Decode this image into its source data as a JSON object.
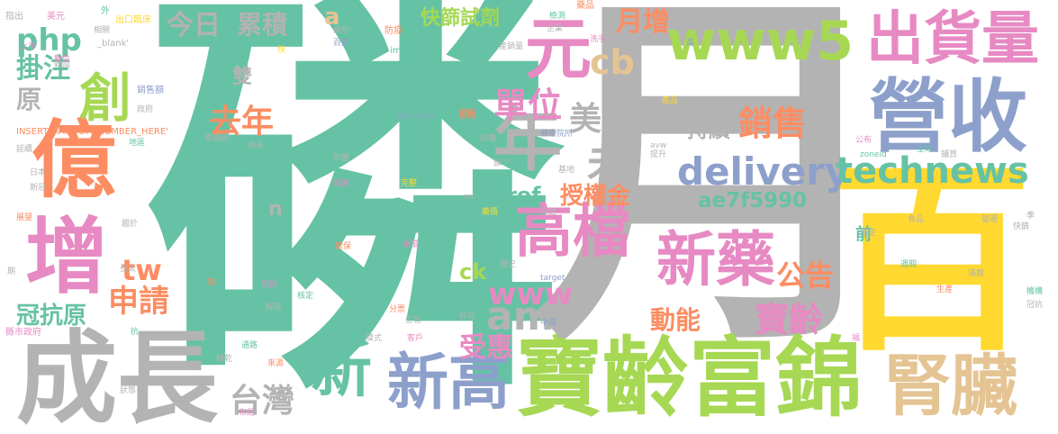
{
  "colors": {
    "teal": "#66c2a5",
    "orange": "#fc8d62",
    "blue": "#8da0cb",
    "pink": "#e78ac3",
    "green": "#a6d854",
    "yellow": "#ffd92f",
    "tan": "#e5c494",
    "gray": "#b3b3b3"
  },
  "words": [
    {
      "key": "lin",
      "text": "磷",
      "color": "teal"
    },
    {
      "key": "yue",
      "text": "月",
      "color": "gray"
    },
    {
      "key": "bai",
      "text": "百",
      "color": "yellow"
    },
    {
      "key": "chengzhang",
      "text": "成長",
      "color": "gray"
    },
    {
      "key": "baolingfujin",
      "text": "寶齡富錦",
      "color": "green"
    },
    {
      "key": "yingshou",
      "text": "營收",
      "color": "blue"
    },
    {
      "key": "chuhuoliang",
      "text": "出貨量",
      "color": "pink"
    },
    {
      "key": "shenzang",
      "text": "腎臟",
      "color": "tan"
    },
    {
      "key": "xinyao",
      "text": "新藥",
      "color": "pink"
    },
    {
      "key": "yi",
      "text": "億",
      "color": "orange"
    },
    {
      "key": "zeng",
      "text": "增",
      "color": "pink"
    },
    {
      "key": "yuan",
      "text": "元",
      "color": "pink"
    },
    {
      "key": "nian",
      "text": "年",
      "color": "gray"
    },
    {
      "key": "www5",
      "text": "www5",
      "color": "green"
    },
    {
      "key": "xingao",
      "text": "新高",
      "color": "blue"
    },
    {
      "key": "gaodang",
      "text": "高檔",
      "color": "pink"
    },
    {
      "key": "xin",
      "text": "新",
      "color": "teal"
    },
    {
      "key": "chuang",
      "text": "創",
      "color": "green"
    },
    {
      "key": "delivery",
      "text": "delivery",
      "color": "blue"
    },
    {
      "key": "technews",
      "text": "technews",
      "color": "teal"
    },
    {
      "key": "ae7f5990",
      "text": "ae7f5990",
      "color": "teal"
    },
    {
      "key": "amp",
      "text": "amp",
      "color": "gray"
    },
    {
      "key": "www",
      "text": "www",
      "color": "pink"
    },
    {
      "key": "qunian",
      "text": "去年",
      "color": "orange"
    },
    {
      "key": "danwei",
      "text": "單位",
      "color": "pink"
    },
    {
      "key": "meiguo",
      "text": "美國",
      "color": "gray"
    },
    {
      "key": "wei",
      "text": "未",
      "color": "gray"
    },
    {
      "key": "php",
      "text": "php",
      "color": "teal"
    },
    {
      "key": "cb",
      "text": "cb",
      "color": "tan"
    },
    {
      "key": "xiaoshou",
      "text": "銷售",
      "color": "orange"
    },
    {
      "key": "baoling",
      "text": "寶齡",
      "color": "pink"
    },
    {
      "key": "taiwan",
      "text": "台灣",
      "color": "gray"
    },
    {
      "key": "kuaishaishiji",
      "text": "快篩試劑",
      "color": "green"
    },
    {
      "key": "yuezeng",
      "text": "月增",
      "color": "orange"
    },
    {
      "key": "shouquanjin",
      "text": "授權金",
      "color": "orange"
    },
    {
      "key": "dongneng",
      "text": "動能",
      "color": "orange"
    },
    {
      "key": "gonggao",
      "text": "公告",
      "color": "orange"
    },
    {
      "key": "tw",
      "text": "tw",
      "color": "orange"
    },
    {
      "key": "shenqing",
      "text": "申請",
      "color": "orange"
    },
    {
      "key": "guankangyuan",
      "text": "冠抗原",
      "color": "teal"
    },
    {
      "key": "jinri",
      "text": "今日",
      "color": "gray"
    },
    {
      "key": "leiji",
      "text": "累積",
      "color": "gray"
    },
    {
      "key": "chixu",
      "text": "持續",
      "color": "gray"
    },
    {
      "key": "shouhui",
      "text": "受惠",
      "color": "pink"
    },
    {
      "key": "href",
      "text": "href",
      "color": "teal"
    },
    {
      "key": "ck",
      "text": "ck",
      "color": "green"
    },
    {
      "key": "guazhu",
      "text": "掛注",
      "color": "teal"
    },
    {
      "key": "yuan2",
      "text": "原",
      "color": "gray"
    },
    {
      "key": "shuang",
      "text": "雙",
      "color": "gray"
    },
    {
      "key": "a",
      "text": "a",
      "color": "tan"
    },
    {
      "key": "n",
      "text": "n",
      "color": "gray"
    },
    {
      "key": "qian",
      "text": "前",
      "color": "teal"
    },
    {
      "key": "t_zhichu",
      "text": "指出",
      "color": "gray"
    },
    {
      "key": "t_meiyuan",
      "text": "美元",
      "color": "pink"
    },
    {
      "key": "t_wai",
      "text": "外",
      "color": "teal"
    },
    {
      "key": "t_chukou",
      "text": "出口臨床",
      "color": "yellow"
    },
    {
      "key": "t_irn1",
      "text": "INSERT_RANDOM_NUMBE",
      "color": "gray"
    },
    {
      "key": "t_fanghe",
      "text": "防疫",
      "color": "orange"
    },
    {
      "key": "t_chengfen",
      "text": "成份",
      "color": "gray"
    },
    {
      "key": "t_baiwan",
      "text": "百萬",
      "color": "blue"
    },
    {
      "key": "t_shangshi",
      "text": "上市",
      "color": "pink"
    },
    {
      "key": "t_xiangguan",
      "text": "相關",
      "color": "gray"
    },
    {
      "key": "t_blank",
      "text": "_blank'",
      "color": "gray"
    },
    {
      "key": "t_zhuli",
      "text": "主力",
      "color": "teal"
    },
    {
      "key": "t_img",
      "text": "img",
      "color": "teal"
    },
    {
      "key": "t_qiye",
      "text": "企業",
      "color": "gray"
    },
    {
      "key": "t_chanxiao",
      "text": "產銷量",
      "color": "gray"
    },
    {
      "key": "t_xishou",
      "text": "洗手",
      "color": "pink"
    },
    {
      "key": "t_peihe",
      "text": "配合",
      "color": "gray"
    },
    {
      "key": "t_gao",
      "text": "高",
      "color": "blue"
    },
    {
      "key": "t_irn2",
      "text": "INSERT_RANDOM_NUMBE",
      "color": "gray"
    },
    {
      "key": "t_yaoping",
      "text": "藥品",
      "color": "orange"
    },
    {
      "key": "t_jiance",
      "text": "檢測",
      "color": "teal"
    },
    {
      "key": "t_kuai",
      "text": "快",
      "color": "yellow"
    },
    {
      "key": "t_chanqu",
      "text": "韓國",
      "color": "gray"
    },
    {
      "key": "t_yaju",
      "text": "數位",
      "color": "pink"
    },
    {
      "key": "t_jiagan",
      "text": "價格",
      "color": "teal"
    },
    {
      "key": "t_qingbao",
      "text": "情報",
      "color": "orange"
    },
    {
      "key": "t_xiaoshoue",
      "text": "銷售額",
      "color": "blue"
    },
    {
      "key": "t_zhengfu",
      "text": "政府",
      "color": "gray"
    },
    {
      "key": "t_irn_here",
      "text": "INSERT_RANDOM_NUMBER_HERE'",
      "color": "orange"
    },
    {
      "key": "t_quanli",
      "text": "權利金",
      "color": "teal"
    },
    {
      "key": "t_omicron",
      "text": "Omicron",
      "color": "blue"
    },
    {
      "key": "t_yiqing",
      "text": "疫情",
      "color": "orange"
    },
    {
      "key": "t_chanpin",
      "text": "產品",
      "color": "yellow"
    },
    {
      "key": "t_weisheng",
      "text": "衛福部",
      "color": "gray"
    },
    {
      "key": "t_shangwei",
      "text": "尚未",
      "color": "gray"
    },
    {
      "key": "t_jiegou",
      "text": "結構",
      "color": "gray"
    },
    {
      "key": "t_san",
      "text": "三",
      "color": "gray"
    },
    {
      "key": "t_yiliao",
      "text": "醫療院所",
      "color": "blue"
    },
    {
      "key": "t_avw",
      "text": "avw",
      "color": "gray"
    },
    {
      "key": "t_tisheng",
      "text": "提升",
      "color": "gray"
    },
    {
      "key": "t_quanqiu",
      "text": "全球",
      "color": "teal"
    },
    {
      "key": "t_gongbu",
      "text": "公布",
      "color": "pink"
    },
    {
      "key": "t_yanxu",
      "text": "延續",
      "color": "gray"
    },
    {
      "key": "t_diqu",
      "text": "地區",
      "color": "teal"
    },
    {
      "key": "t_riben",
      "text": "日本",
      "color": "gray"
    },
    {
      "key": "t_xinyao2",
      "text": "新冠",
      "color": "gray"
    },
    {
      "key": "t_yingxiang",
      "text": "影響",
      "color": "gray"
    },
    {
      "key": "t_qixia",
      "text": "旗下",
      "color": "gray"
    },
    {
      "key": "t_zoneid",
      "text": "zoneid",
      "color": "teal"
    },
    {
      "key": "t_puhuo",
      "text": "鋪貨",
      "color": "gray"
    },
    {
      "key": "t_jidi",
      "text": "基地",
      "color": "gray"
    },
    {
      "key": "t_yinsu",
      "text": "因素",
      "color": "pink"
    },
    {
      "key": "t_wanzheng",
      "text": "完整",
      "color": "yellow"
    },
    {
      "key": "t_src",
      "text": "src",
      "color": "gray"
    },
    {
      "key": "t_zhanwang",
      "text": "展望",
      "color": "orange"
    },
    {
      "key": "t_qushi",
      "text": "趨於",
      "color": "gray"
    },
    {
      "key": "t_shiji",
      "text": "試劑",
      "color": "teal"
    },
    {
      "key": "t_yaofang",
      "text": "藥價",
      "color": "yellow"
    },
    {
      "key": "t_baozhang",
      "text": "保健",
      "color": "gray"
    },
    {
      "key": "t_shipin",
      "text": "食品",
      "color": "gray"
    },
    {
      "key": "t_wending",
      "text": "穩定",
      "color": "gray"
    },
    {
      "key": "t_bianhuan",
      "text": "變遷",
      "color": "gray"
    },
    {
      "key": "t_kuaishai",
      "text": "快篩",
      "color": "gray"
    },
    {
      "key": "t_ji",
      "text": "季",
      "color": "gray"
    },
    {
      "key": "t_jianshou",
      "text": "健保",
      "color": "orange"
    },
    {
      "key": "t_danjia",
      "text": "單價",
      "color": "pink"
    },
    {
      "key": "t_qi",
      "text": "期",
      "color": "gray"
    },
    {
      "key": "t_yatai",
      "text": "亞太",
      "color": "gray"
    },
    {
      "key": "t_lishi",
      "text": "歷史",
      "color": "gray"
    },
    {
      "key": "t_target",
      "text": "target",
      "color": "blue"
    },
    {
      "key": "t_xiangfang",
      "text": "相仿",
      "color": "gray"
    },
    {
      "key": "t_zhouqi",
      "text": "週期",
      "color": "teal"
    },
    {
      "key": "t_tai",
      "text": "太",
      "color": "yellow"
    },
    {
      "key": "t_manzai",
      "text": "滿載",
      "color": "gray"
    },
    {
      "key": "t_shengchan",
      "text": "生產",
      "color": "orange"
    },
    {
      "key": "t_hhh",
      "text": "機構",
      "color": "teal"
    },
    {
      "key": "t_yi",
      "text": "逸",
      "color": "orange"
    },
    {
      "key": "t_baokuo",
      "text": "包括",
      "color": "pink"
    },
    {
      "key": "t_jieshi",
      "text": "解答",
      "color": "gray"
    },
    {
      "key": "t_heding",
      "text": "核定",
      "color": "teal"
    },
    {
      "key": "t_fenbu",
      "text": "分票",
      "color": "orange"
    },
    {
      "key": "t_xuke",
      "text": "許可",
      "color": "gray"
    },
    {
      "key": "t_zhuguan",
      "text": "主管",
      "color": "gray"
    },
    {
      "key": "t_zhongguo",
      "text": "中國",
      "color": "blue"
    },
    {
      "key": "t_chuhuo",
      "text": "出貨",
      "color": "gray"
    },
    {
      "key": "t_guankang",
      "text": "冠抗",
      "color": "gray"
    },
    {
      "key": "t_xianshi",
      "text": "縣市政府",
      "color": "pink"
    },
    {
      "key": "t_kang",
      "text": "抗",
      "color": "teal"
    },
    {
      "key": "t_moshi",
      "text": "模式",
      "color": "gray"
    },
    {
      "key": "t_kehu",
      "text": "客戶",
      "color": "pink"
    },
    {
      "key": "t_tonglu",
      "text": "通路",
      "color": "teal"
    },
    {
      "key": "t_jingqian",
      "text": "精乾",
      "color": "gray"
    },
    {
      "key": "t_laiyuan",
      "text": "來源",
      "color": "orange"
    },
    {
      "key": "t_zhuangtai",
      "text": "狀態",
      "color": "gray"
    },
    {
      "key": "t_buju",
      "text": "布局",
      "color": "pink"
    },
    {
      "key": "t_fu",
      "text": "福",
      "color": "pink"
    }
  ]
}
